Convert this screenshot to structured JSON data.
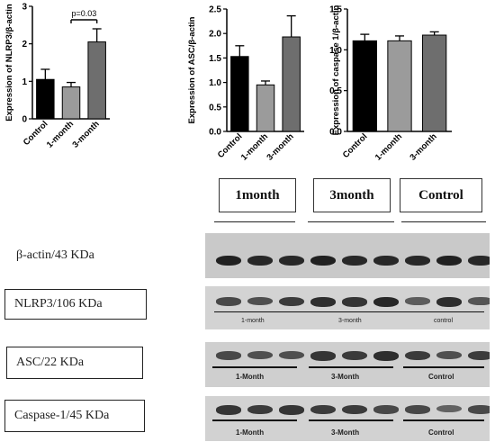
{
  "chart_data": [
    {
      "type": "bar",
      "ylabel": "Expression of NLRP3/β-actin",
      "categories": [
        "Control",
        "1-month",
        "3-month"
      ],
      "values": [
        1.05,
        0.85,
        2.05
      ],
      "errors": [
        0.27,
        0.12,
        0.35
      ],
      "ylim": [
        0,
        3
      ],
      "yticks": [
        "0",
        "1",
        "2",
        "3"
      ],
      "annotation": "p=0.03",
      "colors": [
        "#000000",
        "#9b9b9b",
        "#6e6e6e"
      ]
    },
    {
      "type": "bar",
      "ylabel": "Expression of ASC/β-actin",
      "categories": [
        "Control",
        "1-month",
        "3-month"
      ],
      "values": [
        1.53,
        0.95,
        1.93
      ],
      "errors": [
        0.22,
        0.08,
        0.43
      ],
      "ylim": [
        0,
        2.5
      ],
      "yticks": [
        "0.0",
        "0.5",
        "1.0",
        "1.5",
        "2.0",
        "2.5"
      ],
      "colors": [
        "#000000",
        "#9b9b9b",
        "#6e6e6e"
      ]
    },
    {
      "type": "bar",
      "ylabel": "Expression of caspase 1/β-actin",
      "categories": [
        "Control",
        "1-month",
        "3-month"
      ],
      "values": [
        1.11,
        1.11,
        1.18
      ],
      "errors": [
        0.08,
        0.06,
        0.04
      ],
      "ylim": [
        0,
        1.5
      ],
      "yticks": [
        "0.0",
        "0.5",
        "1.0",
        "1.5"
      ],
      "colors": [
        "#000000",
        "#9b9b9b",
        "#6e6e6e"
      ]
    }
  ],
  "western_blot": {
    "lane_groups": [
      "1month",
      "3month",
      "Control"
    ],
    "proteins": [
      {
        "label": "β-actin/43 KDa",
        "boxed": false,
        "group_labels": [],
        "band_intensity": [
          0.9,
          0.85,
          0.85,
          0.9,
          0.85,
          0.85,
          0.85,
          0.9,
          0.85
        ]
      },
      {
        "label": "NLRP3/106 KDa",
        "boxed": true,
        "group_labels": [
          "1-month",
          "3-month",
          "control"
        ],
        "band_intensity": [
          0.6,
          0.55,
          0.7,
          0.8,
          0.75,
          0.85,
          0.45,
          0.8,
          0.5
        ]
      },
      {
        "label": "ASC/22 KDa",
        "boxed": true,
        "group_labels": [
          "1-Month",
          "3-Month",
          "Control"
        ],
        "band_intensity": [
          0.6,
          0.55,
          0.55,
          0.75,
          0.7,
          0.8,
          0.7,
          0.55,
          0.7
        ]
      },
      {
        "label": "Caspase-1/45 KDa",
        "boxed": true,
        "group_labels": [
          "1-Month",
          "3-Month",
          "Control"
        ],
        "band_intensity": [
          0.75,
          0.7,
          0.75,
          0.7,
          0.7,
          0.6,
          0.6,
          0.4,
          0.6
        ]
      }
    ]
  }
}
